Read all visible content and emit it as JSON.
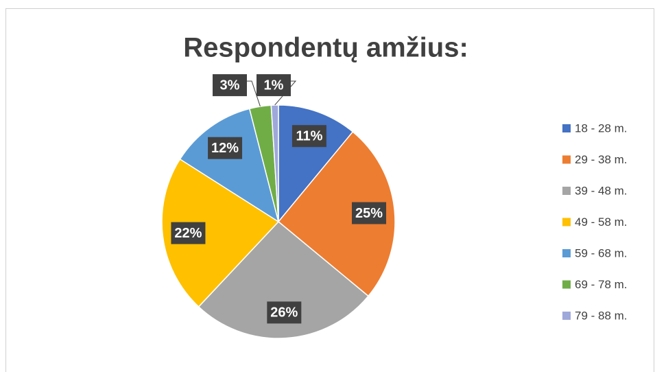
{
  "chart_data": {
    "type": "pie",
    "title": "Respondentų amžius:",
    "categories": [
      "18 - 28 m.",
      "29 - 38 m.",
      "39 - 48 m.",
      "49 - 58 m.",
      "59 - 68 m.",
      "69 - 78 m.",
      "79 - 88 m."
    ],
    "values": [
      11,
      25,
      26,
      22,
      12,
      3,
      1
    ],
    "value_labels": [
      "11%",
      "25%",
      "26%",
      "22%",
      "12%",
      "3%",
      "1%"
    ],
    "colors": [
      "#4472c4",
      "#ed7d31",
      "#a5a5a5",
      "#ffc000",
      "#5b9bd5",
      "#70ad47",
      "#9fa8da"
    ],
    "legend": "right"
  }
}
